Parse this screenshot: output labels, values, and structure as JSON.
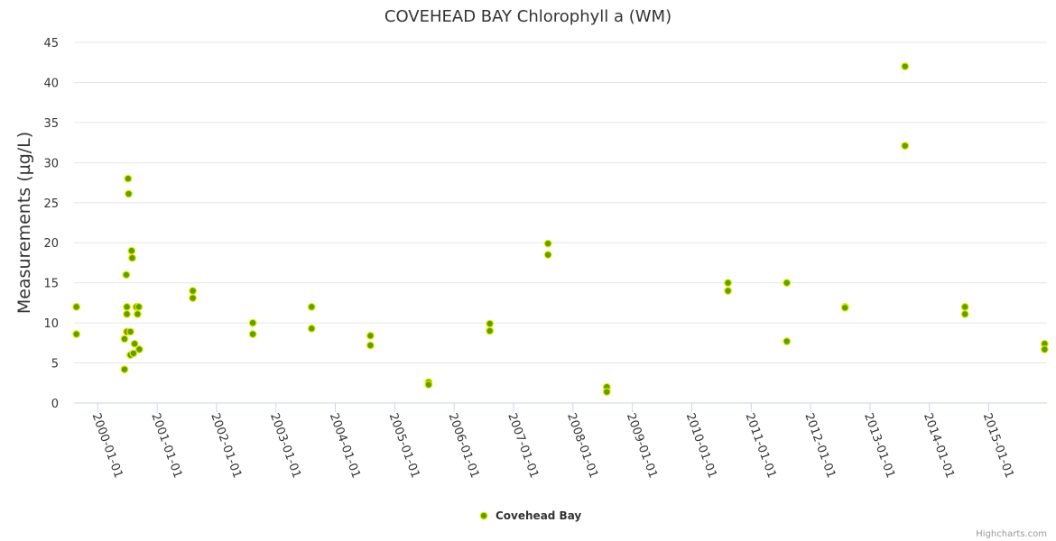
{
  "credits": "Highcharts.com",
  "chart_data": {
    "type": "scatter",
    "title": "COVEHEAD BAY Chlorophyll a (WM)",
    "xlabel": "",
    "ylabel": "Measurements (µg/L)",
    "ylim": [
      0,
      45
    ],
    "yticks": [
      "0",
      "5",
      "10",
      "15",
      "20",
      "25",
      "30",
      "35",
      "40",
      "45"
    ],
    "xticks": [
      "2000-01-01",
      "2001-01-01",
      "2002-01-01",
      "2003-01-01",
      "2004-01-01",
      "2005-01-01",
      "2006-01-01",
      "2007-01-01",
      "2008-01-01",
      "2009-01-01",
      "2010-01-01",
      "2011-01-01",
      "2012-01-01",
      "2013-01-01",
      "2014-01-01",
      "2015-01-01"
    ],
    "xlim": [
      1999.6,
      2015.98
    ],
    "legend_position": "bottom-center",
    "series": [
      {
        "name": "Covehead Bay",
        "color": "#5d9e00",
        "points": [
          [
            1999.64,
            12
          ],
          [
            1999.64,
            8.6
          ],
          [
            2000.45,
            8
          ],
          [
            2000.45,
            4.2
          ],
          [
            2000.48,
            16
          ],
          [
            2000.49,
            12
          ],
          [
            2000.49,
            11.1
          ],
          [
            2000.49,
            8.9
          ],
          [
            2000.51,
            28
          ],
          [
            2000.52,
            26.1
          ],
          [
            2000.55,
            8.9
          ],
          [
            2000.55,
            6
          ],
          [
            2000.57,
            19
          ],
          [
            2000.58,
            18.1
          ],
          [
            2000.6,
            6.2
          ],
          [
            2000.62,
            7.4
          ],
          [
            2000.65,
            12
          ],
          [
            2000.67,
            11.1
          ],
          [
            2000.69,
            12
          ],
          [
            2000.7,
            6.7
          ],
          [
            2001.6,
            14
          ],
          [
            2001.6,
            13.1
          ],
          [
            2002.61,
            10
          ],
          [
            2002.61,
            8.6
          ],
          [
            2003.6,
            12
          ],
          [
            2003.6,
            9.3
          ],
          [
            2004.59,
            8.4
          ],
          [
            2004.59,
            7.2
          ],
          [
            2005.57,
            2.6
          ],
          [
            2005.57,
            2.3
          ],
          [
            2006.6,
            9.9
          ],
          [
            2006.6,
            9
          ],
          [
            2007.58,
            19.9
          ],
          [
            2007.58,
            18.5
          ],
          [
            2008.57,
            2
          ],
          [
            2008.57,
            1.4
          ],
          [
            2010.61,
            15
          ],
          [
            2010.61,
            14
          ],
          [
            2011.6,
            15
          ],
          [
            2011.6,
            7.7
          ],
          [
            2012.58,
            12
          ],
          [
            2012.58,
            11.9
          ],
          [
            2013.59,
            42
          ],
          [
            2013.59,
            32.1
          ],
          [
            2014.6,
            12
          ],
          [
            2014.6,
            11.1
          ],
          [
            2015.94,
            7.4
          ],
          [
            2015.94,
            6.7
          ]
        ]
      }
    ]
  }
}
